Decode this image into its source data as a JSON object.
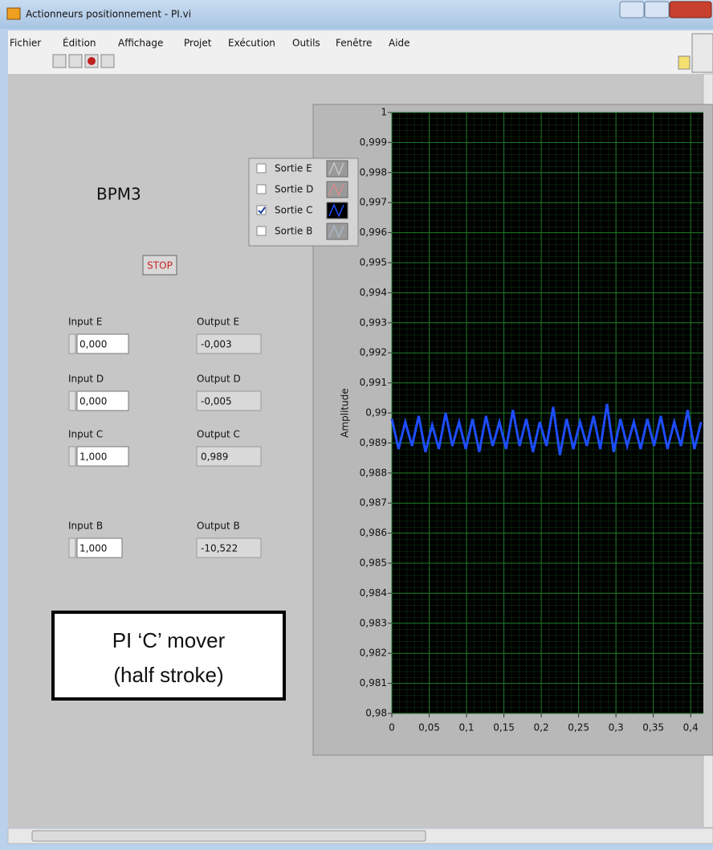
{
  "window": {
    "title": "Actionneurs positionnement - PI.vi"
  },
  "menu": [
    "Fichier",
    "Édition",
    "Affichage",
    "Projet",
    "Exécution",
    "Outils",
    "Fenêtre",
    "Aide"
  ],
  "panel": {
    "label": "BPM3",
    "stop_button": "STOP",
    "controls": [
      {
        "input_label": "Input E",
        "input_value": "0,000",
        "output_label": "Output E",
        "output_value": "-0,003"
      },
      {
        "input_label": "Input D",
        "input_value": "0,000",
        "output_label": "Output D",
        "output_value": "-0,005"
      },
      {
        "input_label": "Input C",
        "input_value": "1,000",
        "output_label": "Output C",
        "output_value": "0,989"
      },
      {
        "input_label": "Input B",
        "input_value": "1,000",
        "output_label": "Output B",
        "output_value": "-10,522"
      }
    ],
    "annotation": [
      "PI ‘C’ mover",
      "(half stroke)"
    ]
  },
  "graph": {
    "type": "line",
    "y_label": "Amplitude",
    "grid": true,
    "ylim": [
      0.98,
      1
    ],
    "yticks": [
      {
        "value": 0.98,
        "label": "0,98"
      },
      {
        "value": 0.981,
        "label": "0,981"
      },
      {
        "value": 0.982,
        "label": "0,982"
      },
      {
        "value": 0.983,
        "label": "0,983"
      },
      {
        "value": 0.984,
        "label": "0,984"
      },
      {
        "value": 0.985,
        "label": "0,985"
      },
      {
        "value": 0.986,
        "label": "0,986"
      },
      {
        "value": 0.987,
        "label": "0,987"
      },
      {
        "value": 0.988,
        "label": "0,988"
      },
      {
        "value": 0.989,
        "label": "0,989"
      },
      {
        "value": 0.99,
        "label": "0,99"
      },
      {
        "value": 0.991,
        "label": "0,991"
      },
      {
        "value": 0.992,
        "label": "0,992"
      },
      {
        "value": 0.993,
        "label": "0,993"
      },
      {
        "value": 0.994,
        "label": "0,994"
      },
      {
        "value": 0.995,
        "label": "0,995"
      },
      {
        "value": 0.996,
        "label": "0,996"
      },
      {
        "value": 0.997,
        "label": "0,997"
      },
      {
        "value": 0.998,
        "label": "0,998"
      },
      {
        "value": 0.999,
        "label": "0,999"
      },
      1
    ],
    "xlim": [
      0,
      0.417
    ],
    "xticks": [
      0,
      {
        "value": 0.05,
        "label": "0,05"
      },
      {
        "value": 0.1,
        "label": "0,1"
      },
      {
        "value": 0.15,
        "label": "0,15"
      },
      {
        "value": 0.2,
        "label": "0,2"
      },
      {
        "value": 0.25,
        "label": "0,25"
      },
      {
        "value": 0.3,
        "label": "0,3"
      },
      {
        "value": 0.35,
        "label": "0,35"
      },
      {
        "value": 0.4,
        "label": "0,4"
      }
    ],
    "series": [
      {
        "name": "Sortie E",
        "checked": false,
        "color": "#c8c8c8"
      },
      {
        "name": "Sortie D",
        "checked": false,
        "color": "#d98a8a"
      },
      {
        "name": "Sortie C",
        "checked": true,
        "color": "#1e4dff",
        "x": [
          0,
          0.009,
          0.018,
          0.027,
          0.036,
          0.045,
          0.054,
          0.063,
          0.072,
          0.081,
          0.09,
          0.099,
          0.108,
          0.117,
          0.126,
          0.135,
          0.144,
          0.153,
          0.162,
          0.171,
          0.18,
          0.189,
          0.198,
          0.207,
          0.216,
          0.225,
          0.234,
          0.243,
          0.252,
          0.261,
          0.27,
          0.279,
          0.288,
          0.297,
          0.306,
          0.315,
          0.324,
          0.333,
          0.342,
          0.351,
          0.36,
          0.369,
          0.378,
          0.387,
          0.396,
          0.405,
          0.414
        ],
        "values": [
          0.9898,
          0.9888,
          0.9897,
          0.9889,
          0.9899,
          0.9887,
          0.9896,
          0.9888,
          0.99,
          0.9889,
          0.9897,
          0.9888,
          0.9898,
          0.9887,
          0.9899,
          0.9889,
          0.9897,
          0.9888,
          0.9901,
          0.9889,
          0.9898,
          0.9887,
          0.9897,
          0.9889,
          0.9902,
          0.9886,
          0.9898,
          0.9888,
          0.9897,
          0.9889,
          0.9899,
          0.9888,
          0.9903,
          0.9887,
          0.9898,
          0.9889,
          0.9897,
          0.9888,
          0.9898,
          0.9889,
          0.9899,
          0.9888,
          0.9897,
          0.9889,
          0.9901,
          0.9888,
          0.9897
        ]
      },
      {
        "name": "Sortie B",
        "checked": false,
        "color": "#a9b8c8"
      }
    ]
  }
}
